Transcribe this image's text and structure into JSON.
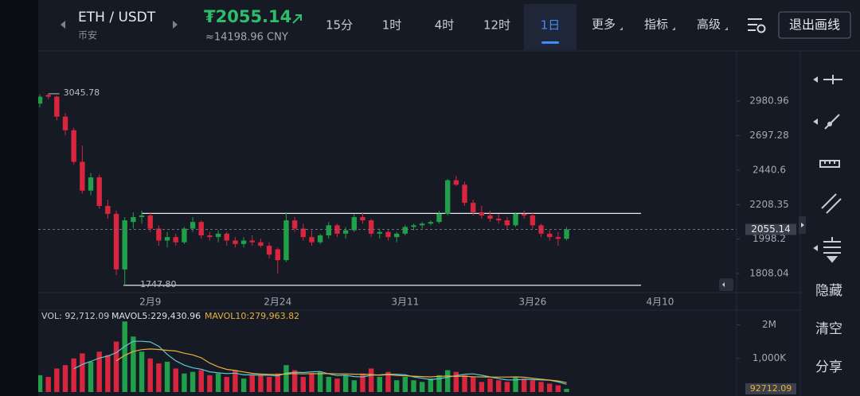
{
  "header": {
    "symbol": "ETH / USDT",
    "exchange": "币安",
    "price": "₮2055.14",
    "price_color": "#2ebd6b",
    "price_cny": "≈14198.96 CNY",
    "intervals": [
      "15分",
      "1时",
      "4时",
      "12时",
      "1日"
    ],
    "selected_interval": 4,
    "menus": [
      "更多",
      "指标",
      "高级"
    ],
    "exit_button": "退出画线"
  },
  "toolbar": {
    "actions": [
      "隐藏",
      "清空",
      "分享"
    ]
  },
  "chart_data": {
    "type": "candlestick",
    "categories": [
      null,
      null,
      null,
      null,
      null,
      null,
      null,
      null,
      null,
      null,
      null,
      null,
      null,
      "2月9",
      null,
      null,
      null,
      null,
      null,
      null,
      null,
      null,
      null,
      null,
      null,
      null,
      null,
      null,
      "2月24",
      null,
      null,
      null,
      null,
      null,
      null,
      null,
      null,
      null,
      null,
      null,
      null,
      null,
      null,
      "3月11",
      null,
      null,
      null,
      null,
      null,
      null,
      null,
      null,
      null,
      null,
      null,
      null,
      null,
      null,
      "3月26",
      null,
      null,
      null,
      null,
      null,
      null,
      null,
      null,
      null,
      null,
      null,
      null,
      null,
      null,
      "4月10"
    ],
    "open": [
      2960,
      3035,
      3020,
      2850,
      2740,
      2500,
      2300,
      2390,
      2200,
      2150,
      1830,
      2100,
      2130,
      2140,
      2060,
      1990,
      2010,
      1980,
      2060,
      2100,
      2020,
      2010,
      2030,
      1990,
      1970,
      1990,
      1980,
      1960,
      1940,
      1880,
      2110,
      2060,
      2010,
      1980,
      2020,
      2080,
      2030,
      2050,
      2130,
      2110,
      2030,
      2040,
      2010,
      2030,
      2070,
      2080,
      2090,
      2100,
      2150,
      2370,
      2340,
      2220,
      2160,
      2140,
      2120,
      2110,
      2080,
      2150,
      2140,
      2080,
      2030,
      2010,
      2000,
      null,
      null,
      null,
      null,
      null,
      null,
      null,
      null,
      null,
      null,
      null
    ],
    "high": [
      3040,
      3045.78,
      3030,
      2880,
      2760,
      2620,
      2420,
      2410,
      2240,
      2170,
      2130,
      2160,
      2170,
      2160,
      2080,
      2040,
      2030,
      2070,
      2130,
      2110,
      2040,
      2050,
      2040,
      2010,
      2010,
      2020,
      2000,
      1980,
      1950,
      2160,
      2130,
      2090,
      2050,
      2030,
      2100,
      2090,
      2070,
      2150,
      2160,
      2120,
      2060,
      2050,
      2040,
      2080,
      2090,
      2100,
      2110,
      2170,
      2380,
      2400,
      2360,
      2240,
      2200,
      2170,
      2150,
      2130,
      2160,
      2170,
      2160,
      2090,
      2050,
      2040,
      2070,
      null,
      null,
      null,
      null,
      null,
      null,
      null,
      null,
      null,
      null,
      null
    ],
    "low": [
      2930,
      3000,
      2820,
      2700,
      2480,
      2280,
      2270,
      2180,
      2120,
      1800,
      1747.8,
      2060,
      2090,
      2040,
      1960,
      1950,
      1960,
      1970,
      2040,
      2000,
      1990,
      1980,
      1960,
      1950,
      1950,
      1960,
      1950,
      1890,
      1810,
      1870,
      2040,
      1990,
      1960,
      1970,
      2000,
      2010,
      2000,
      2040,
      2090,
      2010,
      2000,
      1990,
      1980,
      2020,
      2050,
      2060,
      2080,
      2090,
      2140,
      2330,
      2200,
      2140,
      2120,
      2100,
      2090,
      2060,
      2070,
      2120,
      2060,
      2010,
      1990,
      1960,
      1990,
      null,
      null,
      null,
      null,
      null,
      null,
      null,
      null,
      null,
      null,
      null
    ],
    "close": [
      3020,
      3020,
      2850,
      2740,
      2500,
      2300,
      2390,
      2200,
      2150,
      1830,
      2110,
      2130,
      2140,
      2060,
      1990,
      2010,
      1980,
      2060,
      2100,
      2020,
      2010,
      2030,
      1990,
      1970,
      1990,
      1980,
      1960,
      1910,
      1880,
      2110,
      2060,
      2010,
      1980,
      2020,
      2080,
      2030,
      2050,
      2130,
      2110,
      2030,
      2040,
      2010,
      2030,
      2070,
      2080,
      2090,
      2100,
      2150,
      2370,
      2340,
      2220,
      2160,
      2140,
      2120,
      2110,
      2080,
      2150,
      2140,
      2080,
      2030,
      2010,
      2000,
      2055.14,
      null,
      null,
      null,
      null,
      null,
      null,
      null,
      null,
      null,
      null,
      null
    ],
    "up_color": "#21a04a",
    "down_color": "#d9263e",
    "log_scale": true,
    "grid": false,
    "ylim": [
      1711,
      3441
    ],
    "yticks": [
      2980.96,
      2697.28,
      2440.6,
      2208.35,
      1998.2,
      1808.04
    ],
    "current_price": 2055.14,
    "low_marker": {
      "value": 1747.8,
      "label": "1747.80"
    },
    "drawn_lines": [
      2153
    ],
    "volume": [
      500000,
      450000,
      700000,
      800000,
      1000000,
      1150000,
      900000,
      1200000,
      1100000,
      1500000,
      2100000,
      1650000,
      1200000,
      1000000,
      850000,
      900000,
      700000,
      550000,
      600000,
      650000,
      500000,
      550000,
      450000,
      650000,
      400000,
      500000,
      500000,
      450000,
      550000,
      800000,
      650000,
      450000,
      550000,
      600000,
      450000,
      400000,
      500000,
      350000,
      550000,
      700000,
      450000,
      600000,
      350000,
      450000,
      350000,
      300000,
      400000,
      500000,
      650000,
      600000,
      500000,
      450000,
      300000,
      400000,
      350000,
      300000,
      450000,
      400000,
      350000,
      300000,
      250000,
      200000,
      92712.09,
      null,
      null,
      null,
      null,
      null,
      null,
      null,
      null,
      null,
      null,
      null
    ],
    "volume_label": "VOL: 92,712.09",
    "volume_ylim": [
      0,
      2200000
    ],
    "volume_yticks": [
      {
        "value": 2000000,
        "label": "2M"
      },
      {
        "value": 1000000,
        "label": "1,000K"
      }
    ],
    "mavol_series": [
      {
        "name": "MAVOL5:229,430.96",
        "color": "#d6e4e6",
        "line_color": "#5fc8cf",
        "values": [
          null,
          null,
          null,
          null,
          690000,
          820000,
          910000,
          1010000,
          1070000,
          1170000,
          1360000,
          1510000,
          1510000,
          1490000,
          1360000,
          1120000,
          930000,
          800000,
          720000,
          680000,
          600000,
          570000,
          550000,
          560000,
          510000,
          510000,
          500000,
          500000,
          480000,
          560000,
          590000,
          580000,
          600000,
          610000,
          540000,
          490000,
          500000,
          460000,
          450000,
          500000,
          510000,
          530000,
          530000,
          510000,
          450000,
          410000,
          370000,
          400000,
          440000,
          490000,
          530000,
          540000,
          500000,
          450000,
          400000,
          360000,
          360000,
          380000,
          370000,
          360000,
          350000,
          300000,
          229430.96,
          null,
          null,
          null,
          null,
          null,
          null,
          null,
          null,
          null,
          null,
          null
        ]
      },
      {
        "name": "MAVOL10:279,963.82",
        "color": "#e8b03a",
        "line_color": "#e8b03a",
        "values": [
          null,
          null,
          null,
          null,
          null,
          null,
          null,
          null,
          null,
          930000,
          1090000,
          1210000,
          1260000,
          1280000,
          1265000,
          1240000,
          1220000,
          1155000,
          1105000,
          1020000,
          860000,
          750000,
          675000,
          640000,
          595000,
          555000,
          535000,
          525000,
          520000,
          535000,
          550000,
          540000,
          550000,
          545000,
          550000,
          540000,
          540000,
          530000,
          530000,
          520000,
          500000,
          515000,
          495000,
          480000,
          470000,
          460000,
          450000,
          465000,
          475000,
          465000,
          470000,
          455000,
          450000,
          445000,
          445000,
          445000,
          450000,
          440000,
          410000,
          380000,
          355000,
          330000,
          279963.82,
          null,
          null,
          null,
          null,
          null,
          null,
          null,
          null,
          null,
          null,
          null
        ]
      }
    ]
  }
}
